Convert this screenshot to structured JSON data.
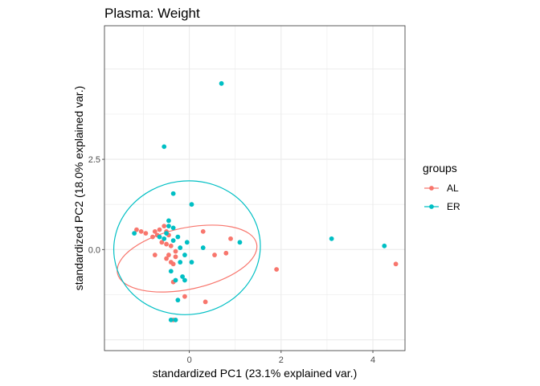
{
  "chart_data": {
    "type": "scatter",
    "title": "Plasma: Weight",
    "xlabel": "standardized PC1 (23.1% explained var.)",
    "ylabel": "standardized PC2 (18.0% explained var.)",
    "xlim": [
      -1.85,
      4.7
    ],
    "ylim": [
      -2.8,
      6.2
    ],
    "x_ticks": [
      0,
      2,
      4
    ],
    "x_tick_labels": [
      "0",
      "2",
      "4"
    ],
    "y_ticks": [
      0,
      2.5
    ],
    "y_tick_labels": [
      "0.0",
      "2.5"
    ],
    "grid": true,
    "legend": {
      "title": "groups",
      "position": "right"
    },
    "series": [
      {
        "name": "AL",
        "color": "#F8766D",
        "points": [
          [
            -1.15,
            0.55
          ],
          [
            -1.05,
            0.5
          ],
          [
            -0.95,
            0.45
          ],
          [
            -0.75,
            0.5
          ],
          [
            -0.7,
            0.4
          ],
          [
            -0.55,
            0.65
          ],
          [
            -0.5,
            0.5
          ],
          [
            -0.45,
            0.4
          ],
          [
            -0.6,
            0.2
          ],
          [
            -0.5,
            0.15
          ],
          [
            -0.4,
            0.1
          ],
          [
            -0.3,
            -0.05
          ],
          [
            -0.45,
            -0.15
          ],
          [
            -0.5,
            -0.25
          ],
          [
            -0.4,
            -0.35
          ],
          [
            -0.35,
            -0.4
          ],
          [
            -0.3,
            -0.2
          ],
          [
            -0.75,
            -0.15
          ],
          [
            -0.35,
            -0.9
          ],
          [
            -0.1,
            -1.3
          ],
          [
            -0.35,
            -1.95
          ],
          [
            0.35,
            -1.45
          ],
          [
            0.3,
            0.5
          ],
          [
            0.9,
            0.3
          ],
          [
            0.8,
            -0.1
          ],
          [
            0.55,
            -0.15
          ],
          [
            1.9,
            -0.55
          ],
          [
            4.5,
            -0.4
          ],
          [
            -0.65,
            0.55
          ],
          [
            -0.8,
            0.35
          ]
        ]
      },
      {
        "name": "ER",
        "color": "#00BFC4",
        "points": [
          [
            0.7,
            4.6
          ],
          [
            -0.55,
            2.85
          ],
          [
            -0.35,
            1.55
          ],
          [
            0.05,
            1.25
          ],
          [
            -0.45,
            0.8
          ],
          [
            -0.35,
            0.6
          ],
          [
            -0.5,
            0.45
          ],
          [
            -0.55,
            0.3
          ],
          [
            -0.35,
            0.25
          ],
          [
            -0.25,
            0.35
          ],
          [
            -1.2,
            0.45
          ],
          [
            -0.05,
            0.2
          ],
          [
            -0.2,
            0.05
          ],
          [
            -0.1,
            -0.15
          ],
          [
            -0.2,
            -0.35
          ],
          [
            0.05,
            -0.35
          ],
          [
            -0.4,
            -0.6
          ],
          [
            -0.3,
            -0.85
          ],
          [
            -0.15,
            -0.75
          ],
          [
            -0.1,
            -0.85
          ],
          [
            -0.25,
            -1.4
          ],
          [
            -0.4,
            -1.95
          ],
          [
            -0.3,
            -1.95
          ],
          [
            0.3,
            0.05
          ],
          [
            1.1,
            0.2
          ],
          [
            3.1,
            0.3
          ],
          [
            4.25,
            0.1
          ],
          [
            -0.65,
            0.35
          ],
          [
            -0.45,
            0.65
          ]
        ]
      }
    ],
    "ellipses": [
      {
        "group": "AL",
        "cx": -0.05,
        "cy": -0.25,
        "rx": 1.55,
        "ry": 0.85,
        "angle_deg": -12
      },
      {
        "group": "ER",
        "cx": -0.05,
        "cy": 0.05,
        "rx": 1.6,
        "ry": 1.85,
        "angle_deg": -8
      }
    ]
  }
}
